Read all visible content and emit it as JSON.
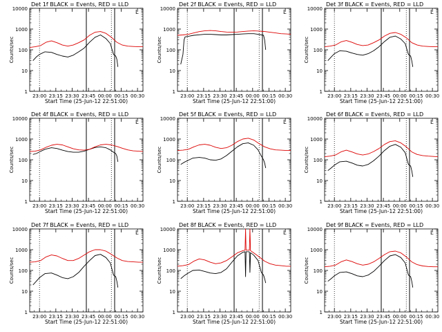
{
  "figure": {
    "xlabel": "Start Time (25-Jun-12 22:51:00)",
    "ylabel": "Counts/sec",
    "xticks": [
      "23:00",
      "23:15",
      "23:30",
      "23:45",
      "00:00",
      "00:15",
      "00:30"
    ],
    "yticks": [
      "1",
      "10",
      "100",
      "1000",
      "10000"
    ],
    "colors": {
      "events": "#000000",
      "lld": "#dd0000",
      "axis": "#000000",
      "background": "#ffffff"
    }
  },
  "chart_data": [
    {
      "type": "line",
      "title": "Det 1f BLACK = Events, RED = LLD",
      "corner_label": "L",
      "x_unit": "minutes after 22:51:00",
      "xlim": [
        0,
        104
      ],
      "ylim": [
        1,
        10000
      ],
      "yscale": "log",
      "markers": {
        "dotted": [
          9,
          75
        ],
        "solid": [
          52,
          78
        ]
      },
      "series": [
        {
          "name": "BLACK = Events",
          "x": [
            3,
            6,
            9,
            14,
            20,
            25,
            30,
            35,
            40,
            45,
            50,
            55,
            60,
            65,
            70,
            74,
            77,
            79,
            80,
            81
          ],
          "y": [
            30,
            45,
            60,
            80,
            75,
            60,
            50,
            45,
            55,
            80,
            120,
            230,
            400,
            520,
            350,
            200,
            60,
            50,
            35,
            15
          ]
        },
        {
          "name": "RED = LLD",
          "x": [
            0,
            5,
            10,
            15,
            20,
            25,
            30,
            35,
            40,
            45,
            50,
            55,
            60,
            65,
            70,
            75,
            80,
            85,
            90,
            95,
            100,
            104
          ],
          "y": [
            130,
            140,
            160,
            230,
            270,
            220,
            170,
            150,
            170,
            220,
            300,
            500,
            700,
            760,
            620,
            400,
            230,
            170,
            150,
            145,
            140,
            140
          ]
        }
      ]
    },
    {
      "type": "line",
      "title": "Det 2f BLACK = Events, RED = LLD",
      "corner_label": "L",
      "x_unit": "minutes after 22:51:00",
      "xlim": [
        0,
        104
      ],
      "ylim": [
        1,
        10000
      ],
      "yscale": "log",
      "markers": {
        "dotted": [
          9,
          75
        ],
        "solid": [
          52,
          78
        ]
      },
      "series": [
        {
          "name": "BLACK = Events",
          "x": [
            3,
            5,
            6,
            7,
            10,
            15,
            20,
            25,
            30,
            35,
            40,
            45,
            50,
            55,
            60,
            65,
            70,
            74,
            77,
            79,
            80,
            81
          ],
          "y": [
            20,
            60,
            300,
            420,
            450,
            500,
            530,
            560,
            560,
            540,
            520,
            520,
            540,
            560,
            580,
            600,
            600,
            560,
            520,
            500,
            300,
            100
          ]
        },
        {
          "name": "RED = LLD",
          "x": [
            0,
            5,
            10,
            15,
            20,
            25,
            30,
            35,
            40,
            45,
            50,
            55,
            60,
            65,
            70,
            75,
            80,
            85,
            90,
            95,
            100,
            104
          ],
          "y": [
            500,
            520,
            560,
            650,
            750,
            820,
            850,
            820,
            760,
            720,
            700,
            720,
            760,
            800,
            820,
            800,
            760,
            700,
            650,
            600,
            580,
            560
          ]
        }
      ]
    },
    {
      "type": "line",
      "title": "Det 3f BLACK = Events, RED = LLD",
      "corner_label": "L",
      "x_unit": "minutes after 22:51:00",
      "xlim": [
        0,
        104
      ],
      "ylim": [
        1,
        10000
      ],
      "yscale": "log",
      "markers": {
        "dotted": [
          9,
          75
        ],
        "solid": [
          52,
          78
        ]
      },
      "series": [
        {
          "name": "BLACK = Events",
          "x": [
            3,
            6,
            9,
            14,
            20,
            25,
            30,
            35,
            40,
            45,
            50,
            55,
            60,
            65,
            70,
            74,
            77,
            79,
            80,
            81
          ],
          "y": [
            30,
            45,
            65,
            90,
            85,
            70,
            60,
            55,
            65,
            90,
            140,
            250,
            400,
            460,
            330,
            200,
            60,
            50,
            30,
            15
          ]
        },
        {
          "name": "RED = LLD",
          "x": [
            0,
            5,
            10,
            15,
            20,
            25,
            30,
            35,
            40,
            45,
            50,
            55,
            60,
            65,
            70,
            75,
            80,
            85,
            90,
            95,
            100,
            104
          ],
          "y": [
            140,
            150,
            170,
            240,
            280,
            230,
            180,
            160,
            170,
            220,
            300,
            460,
            620,
            680,
            560,
            380,
            220,
            170,
            150,
            145,
            140,
            140
          ]
        }
      ]
    },
    {
      "type": "line",
      "title": "Det 4f BLACK = Events, RED = LLD",
      "corner_label": "L",
      "x_unit": "minutes after 22:51:00",
      "xlim": [
        0,
        104
      ],
      "ylim": [
        1,
        10000
      ],
      "yscale": "log",
      "markers": {
        "dotted": [
          9,
          75
        ],
        "solid": [
          52,
          78
        ]
      },
      "series": [
        {
          "name": "BLACK = Events",
          "x": [
            3,
            6,
            9,
            14,
            20,
            25,
            30,
            35,
            40,
            45,
            50,
            55,
            60,
            65,
            70,
            74,
            77,
            79,
            80,
            81
          ],
          "y": [
            180,
            200,
            240,
            320,
            380,
            350,
            290,
            250,
            230,
            230,
            260,
            320,
            390,
            420,
            380,
            300,
            230,
            200,
            150,
            80
          ]
        },
        {
          "name": "RED = LLD",
          "x": [
            0,
            5,
            10,
            15,
            20,
            25,
            30,
            35,
            40,
            45,
            50,
            55,
            60,
            65,
            70,
            75,
            80,
            85,
            90,
            95,
            100,
            104
          ],
          "y": [
            250,
            260,
            300,
            400,
            500,
            560,
            520,
            420,
            340,
            300,
            290,
            320,
            420,
            520,
            560,
            520,
            440,
            360,
            300,
            270,
            260,
            250
          ]
        }
      ]
    },
    {
      "type": "line",
      "title": "Det 5f BLACK = Events, RED = LLD",
      "corner_label": "L",
      "x_unit": "minutes after 22:51:00",
      "xlim": [
        0,
        104
      ],
      "ylim": [
        1,
        10000
      ],
      "yscale": "log",
      "markers": {
        "dotted": [
          9,
          75
        ],
        "solid": [
          52,
          78
        ]
      },
      "series": [
        {
          "name": "BLACK = Events",
          "x": [
            3,
            6,
            9,
            14,
            20,
            25,
            30,
            35,
            40,
            45,
            50,
            55,
            60,
            65,
            70,
            74,
            77,
            79,
            80,
            81
          ],
          "y": [
            60,
            75,
            90,
            120,
            130,
            120,
            100,
            95,
            110,
            160,
            260,
            420,
            600,
            650,
            500,
            300,
            150,
            100,
            70,
            40
          ]
        },
        {
          "name": "RED = LLD",
          "x": [
            0,
            5,
            10,
            15,
            20,
            25,
            30,
            35,
            40,
            45,
            50,
            55,
            60,
            65,
            70,
            75,
            80,
            85,
            90,
            95,
            100,
            104
          ],
          "y": [
            280,
            290,
            320,
            420,
            520,
            560,
            500,
            400,
            350,
            380,
            500,
            750,
            1000,
            1100,
            900,
            600,
            420,
            340,
            300,
            290,
            280,
            280
          ]
        }
      ]
    },
    {
      "type": "line",
      "title": "Det 6f BLACK = Events, RED = LLD",
      "corner_label": "L",
      "x_unit": "minutes after 22:51:00",
      "xlim": [
        0,
        104
      ],
      "ylim": [
        1,
        10000
      ],
      "yscale": "log",
      "markers": {
        "dotted": [
          9,
          75
        ],
        "solid": [
          52,
          78
        ]
      },
      "series": [
        {
          "name": "BLACK = Events",
          "x": [
            3,
            6,
            9,
            14,
            20,
            25,
            30,
            35,
            40,
            45,
            50,
            55,
            60,
            65,
            70,
            74,
            77,
            79,
            80,
            81
          ],
          "y": [
            30,
            40,
            55,
            80,
            85,
            70,
            55,
            50,
            60,
            90,
            150,
            280,
            450,
            550,
            400,
            220,
            60,
            50,
            30,
            15
          ]
        },
        {
          "name": "RED = LLD",
          "x": [
            0,
            5,
            10,
            15,
            20,
            25,
            30,
            35,
            40,
            45,
            50,
            55,
            60,
            65,
            70,
            75,
            80,
            85,
            90,
            95,
            100,
            104
          ],
          "y": [
            140,
            150,
            170,
            240,
            290,
            240,
            190,
            170,
            190,
            250,
            350,
            550,
            750,
            820,
            650,
            420,
            240,
            180,
            160,
            150,
            145,
            140
          ]
        }
      ]
    },
    {
      "type": "line",
      "title": "Det 7f BLACK = Events, RED = LLD",
      "corner_label": "L",
      "x_unit": "minutes after 22:51:00",
      "xlim": [
        0,
        104
      ],
      "ylim": [
        1,
        10000
      ],
      "yscale": "log",
      "markers": {
        "dotted": [
          9,
          75
        ],
        "solid": [
          52,
          78
        ]
      },
      "series": [
        {
          "name": "BLACK = Events",
          "x": [
            3,
            6,
            9,
            14,
            20,
            25,
            30,
            35,
            40,
            45,
            50,
            55,
            60,
            65,
            70,
            74,
            77,
            79,
            80,
            81
          ],
          "y": [
            20,
            30,
            45,
            70,
            75,
            60,
            45,
            40,
            50,
            80,
            160,
            300,
            520,
            600,
            420,
            230,
            60,
            50,
            30,
            15
          ]
        },
        {
          "name": "RED = LLD",
          "x": [
            0,
            5,
            10,
            15,
            20,
            25,
            30,
            35,
            40,
            45,
            50,
            55,
            60,
            65,
            70,
            75,
            80,
            85,
            90,
            95,
            100,
            104
          ],
          "y": [
            250,
            260,
            300,
            450,
            560,
            500,
            380,
            300,
            300,
            380,
            550,
            800,
            1000,
            1000,
            850,
            600,
            400,
            300,
            270,
            260,
            250,
            250
          ]
        }
      ]
    },
    {
      "type": "line",
      "title": "Det 8f BLACK = Events, RED = LLD",
      "corner_label": "L",
      "x_unit": "minutes after 22:51:00",
      "xlim": [
        0,
        104
      ],
      "ylim": [
        1,
        10000
      ],
      "yscale": "log",
      "markers": {
        "dotted": [
          9,
          75
        ],
        "solid": [
          52,
          78
        ]
      },
      "series": [
        {
          "name": "BLACK = Events",
          "x": [
            3,
            6,
            9,
            14,
            20,
            25,
            30,
            35,
            40,
            45,
            50,
            55,
            60,
            62,
            62.5,
            63,
            65,
            66,
            66.5,
            67,
            70,
            74,
            77,
            79,
            80,
            81
          ],
          "y": [
            40,
            55,
            70,
            100,
            105,
            90,
            75,
            70,
            80,
            120,
            250,
            500,
            750,
            800,
            50,
            800,
            800,
            780,
            80,
            720,
            550,
            300,
            80,
            60,
            40,
            25
          ]
        },
        {
          "name": "RED = LLD",
          "x": [
            0,
            5,
            10,
            15,
            20,
            25,
            30,
            35,
            40,
            45,
            50,
            55,
            60,
            62,
            62.5,
            63,
            65,
            66,
            66.5,
            67,
            70,
            75,
            80,
            85,
            90,
            95,
            100,
            104
          ],
          "y": [
            160,
            170,
            190,
            280,
            360,
            320,
            250,
            210,
            230,
            300,
            450,
            700,
            900,
            950,
            10000,
            950,
            950,
            940,
            10000,
            900,
            700,
            450,
            280,
            210,
            180,
            170,
            160,
            160
          ]
        }
      ]
    },
    {
      "type": "line",
      "title": "Det 9f BLACK = Events, RED = LLD",
      "corner_label": "L",
      "x_unit": "minutes after 22:51:00",
      "xlim": [
        0,
        104
      ],
      "ylim": [
        1,
        10000
      ],
      "yscale": "log",
      "markers": {
        "dotted": [
          9,
          75
        ],
        "solid": [
          52,
          78
        ]
      },
      "series": [
        {
          "name": "BLACK = Events",
          "x": [
            3,
            6,
            9,
            14,
            20,
            25,
            30,
            35,
            40,
            45,
            50,
            55,
            60,
            65,
            70,
            74,
            77,
            79,
            80,
            81
          ],
          "y": [
            30,
            40,
            55,
            80,
            85,
            70,
            55,
            50,
            60,
            90,
            160,
            300,
            500,
            580,
            420,
            230,
            60,
            50,
            30,
            15
          ]
        },
        {
          "name": "RED = LLD",
          "x": [
            0,
            5,
            10,
            15,
            20,
            25,
            30,
            35,
            40,
            45,
            50,
            55,
            60,
            65,
            70,
            75,
            80,
            85,
            90,
            95,
            100,
            104
          ],
          "y": [
            150,
            160,
            180,
            260,
            320,
            270,
            210,
            180,
            200,
            260,
            380,
            580,
            800,
            860,
            700,
            450,
            260,
            190,
            165,
            155,
            150,
            150
          ]
        }
      ]
    }
  ]
}
